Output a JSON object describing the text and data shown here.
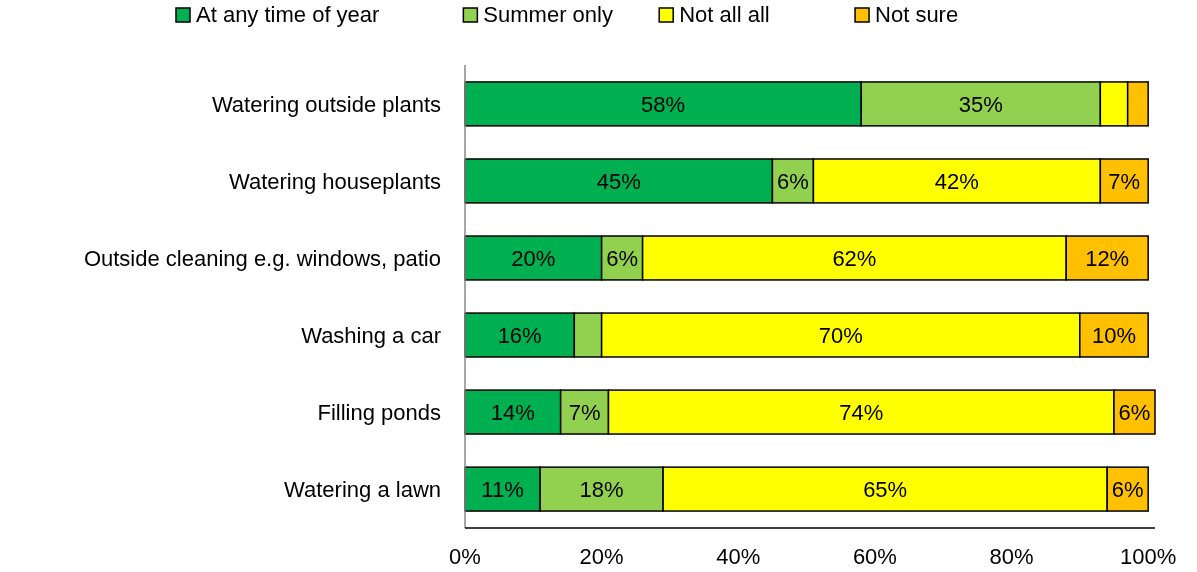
{
  "chart_data": {
    "type": "bar",
    "orientation": "horizontal",
    "stacked": true,
    "categories": [
      "Watering outside plants",
      "Watering houseplants",
      "Outside cleaning e.g. windows, patio",
      "Washing a car",
      "Filling ponds",
      "Watering a lawn"
    ],
    "series": [
      {
        "name": "At any time of year",
        "color": "#00b050",
        "values": [
          58,
          45,
          20,
          16,
          14,
          11
        ],
        "value_labels": [
          "58%",
          "45%",
          "20%",
          "16%",
          "14%",
          "11%"
        ]
      },
      {
        "name": "Summer only",
        "color": "#92d050",
        "values": [
          35,
          6,
          6,
          4,
          7,
          18
        ],
        "value_labels": [
          "35%",
          "6%",
          "6%",
          null,
          "7%",
          "18%"
        ]
      },
      {
        "name": "Not all all",
        "color": "#ffff00",
        "values": [
          4,
          42,
          62,
          70,
          74,
          65
        ],
        "value_labels": [
          null,
          "42%",
          "62%",
          "70%",
          "74%",
          "65%"
        ]
      },
      {
        "name": "Not sure",
        "color": "#ffc000",
        "values": [
          3,
          7,
          12,
          10,
          6,
          6
        ],
        "value_labels": [
          null,
          "7%",
          "12%",
          "10%",
          "6%",
          "6%"
        ]
      }
    ],
    "xlim": [
      0,
      101
    ],
    "xticks": [
      {
        "value": 0,
        "label": "0%"
      },
      {
        "value": 20,
        "label": "20%"
      },
      {
        "value": 40,
        "label": "40%"
      },
      {
        "value": 60,
        "label": "60%"
      },
      {
        "value": 80,
        "label": "80%"
      },
      {
        "value": 100,
        "label": "100%"
      }
    ],
    "legend": "top",
    "grid": false
  }
}
